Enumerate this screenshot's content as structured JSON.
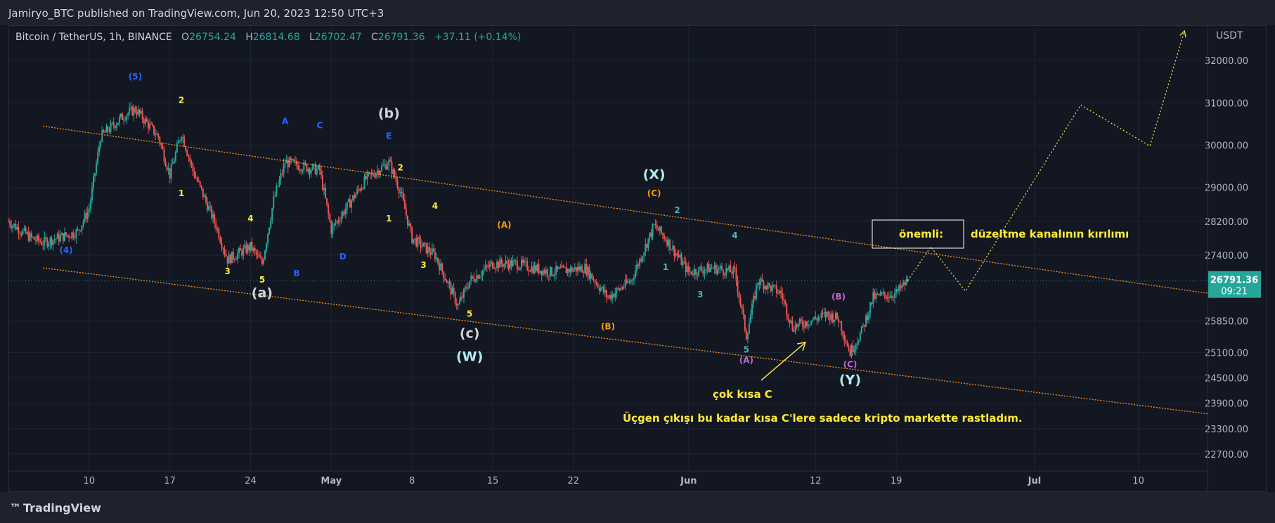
{
  "publisher_line": "Jamiryo_BTC published on TradingView.com, Jun 20, 2023 12:50 UTC+3",
  "legend": {
    "symbol": "Bitcoin / TetherUS, 1h, BINANCE",
    "open_label": "O",
    "open": "26754.24",
    "high_label": "H",
    "high": "26814.68",
    "low_label": "L",
    "low": "26702.47",
    "close_label": "C",
    "close": "26791.36",
    "change": "+37.11 (+0.14%)"
  },
  "currency": "USDT",
  "footer_logo": "TradingView",
  "colors": {
    "background": "#131722",
    "up": "#26a69a",
    "down": "#ef5350",
    "channel": "#f7931a",
    "forecast": "#f5e04a",
    "annotation_text": "#ffeb3b",
    "price_tag": "#26a69a"
  },
  "chart_data": {
    "type": "candlestick",
    "symbol": "Bitcoin / TetherUS",
    "interval": "1h",
    "exchange": "BINANCE",
    "y_axis": {
      "unit": "USDT",
      "ticks": [
        "32000.00",
        "31000.00",
        "30000.00",
        "29000.00",
        "28200.00",
        "27400.00",
        "25850.00",
        "25100.00",
        "24500.00",
        "23900.00",
        "23300.00",
        "22700.00"
      ],
      "range": [
        22300,
        32800
      ]
    },
    "x_axis": {
      "ticks": [
        "10",
        "17",
        "24",
        "May",
        "8",
        "15",
        "22",
        "Jun",
        "12",
        "19",
        "Jul",
        "10"
      ],
      "range": [
        "2023-04-03",
        "2023-07-16"
      ]
    },
    "current_price": {
      "value": 26791.36,
      "label": "26791.36",
      "countdown": "09:21"
    },
    "price_path": [
      {
        "date": "2023-04-03",
        "price": 28200
      },
      {
        "date": "2023-04-05",
        "price": 27800
      },
      {
        "date": "2023-04-06",
        "price": 27700
      },
      {
        "date": "2023-04-09",
        "price": 27950
      },
      {
        "date": "2023-04-10",
        "price": 28500
      },
      {
        "date": "2023-04-11",
        "price": 30200
      },
      {
        "date": "2023-04-13",
        "price": 30700
      },
      {
        "date": "2023-04-14",
        "price": 30850
      },
      {
        "date": "2023-04-16",
        "price": 30200
      },
      {
        "date": "2023-04-17",
        "price": 29300
      },
      {
        "date": "2023-04-18",
        "price": 30300
      },
      {
        "date": "2023-04-19",
        "price": 29400
      },
      {
        "date": "2023-04-21",
        "price": 28100
      },
      {
        "date": "2023-04-22",
        "price": 27300
      },
      {
        "date": "2023-04-24",
        "price": 27600
      },
      {
        "date": "2023-04-25",
        "price": 27200
      },
      {
        "date": "2023-04-26",
        "price": 28700
      },
      {
        "date": "2023-04-27",
        "price": 29600
      },
      {
        "date": "2023-04-30",
        "price": 29400
      },
      {
        "date": "2023-05-01",
        "price": 28000
      },
      {
        "date": "2023-05-02",
        "price": 28400
      },
      {
        "date": "2023-05-04",
        "price": 29200
      },
      {
        "date": "2023-05-06",
        "price": 29600
      },
      {
        "date": "2023-05-07",
        "price": 28900
      },
      {
        "date": "2023-05-08",
        "price": 27800
      },
      {
        "date": "2023-05-10",
        "price": 27400
      },
      {
        "date": "2023-05-12",
        "price": 26200
      },
      {
        "date": "2023-05-13",
        "price": 26800
      },
      {
        "date": "2023-05-15",
        "price": 27200
      },
      {
        "date": "2023-05-17",
        "price": 27200
      },
      {
        "date": "2023-05-20",
        "price": 27000
      },
      {
        "date": "2023-05-23",
        "price": 27100
      },
      {
        "date": "2023-05-25",
        "price": 26400
      },
      {
        "date": "2023-05-27",
        "price": 26800
      },
      {
        "date": "2023-05-29",
        "price": 28100
      },
      {
        "date": "2023-05-30",
        "price": 27800
      },
      {
        "date": "2023-06-01",
        "price": 27000
      },
      {
        "date": "2023-06-03",
        "price": 27100
      },
      {
        "date": "2023-06-05",
        "price": 27000
      },
      {
        "date": "2023-06-06",
        "price": 25500
      },
      {
        "date": "2023-06-07",
        "price": 26800
      },
      {
        "date": "2023-06-09",
        "price": 26500
      },
      {
        "date": "2023-06-10",
        "price": 25700
      },
      {
        "date": "2023-06-12",
        "price": 25900
      },
      {
        "date": "2023-06-13",
        "price": 26000
      },
      {
        "date": "2023-06-14",
        "price": 25900
      },
      {
        "date": "2023-06-15",
        "price": 25100
      },
      {
        "date": "2023-06-16",
        "price": 25600
      },
      {
        "date": "2023-06-17",
        "price": 26400
      },
      {
        "date": "2023-06-19",
        "price": 26500
      },
      {
        "date": "2023-06-20",
        "price": 26790
      }
    ],
    "channel_lines": [
      {
        "name": "upper",
        "from": {
          "date": "2023-04-06",
          "price": 30450
        },
        "to": {
          "date": "2023-07-16",
          "price": 26500
        }
      },
      {
        "name": "lower",
        "from": {
          "date": "2023-04-06",
          "price": 27100
        },
        "to": {
          "date": "2023-07-16",
          "price": 23650
        }
      }
    ],
    "forecast_path": [
      {
        "date": "2023-06-20",
        "price": 26800
      },
      {
        "date": "2023-06-22",
        "price": 27600
      },
      {
        "date": "2023-06-25",
        "price": 26550
      },
      {
        "date": "2023-07-05",
        "price": 30950
      },
      {
        "date": "2023-07-11",
        "price": 29980
      },
      {
        "date": "2023-07-14",
        "price": 32700
      }
    ],
    "wave_labels": [
      {
        "text": "(5)",
        "date": "2023-04-14",
        "price": 31550,
        "color": "#2962ff"
      },
      {
        "text": "2",
        "date": "2023-04-18",
        "price": 31000,
        "color": "#ffeb3b"
      },
      {
        "text": "1",
        "date": "2023-04-18",
        "price": 28800,
        "color": "#ffeb3b"
      },
      {
        "text": "4",
        "date": "2023-04-24",
        "price": 28200,
        "color": "#ffeb3b"
      },
      {
        "text": "3",
        "date": "2023-04-22",
        "price": 26950,
        "color": "#ffeb3b"
      },
      {
        "text": "5",
        "date": "2023-04-25",
        "price": 26750,
        "color": "#ffeb3b"
      },
      {
        "text": "(a)",
        "date": "2023-04-25",
        "price": 26400,
        "color": "#d1d4dc"
      },
      {
        "text": "(4)",
        "date": "2023-04-08",
        "price": 27450,
        "color": "#2962ff"
      },
      {
        "text": "A",
        "date": "2023-04-27",
        "price": 30500,
        "color": "#2962ff"
      },
      {
        "text": "B",
        "date": "2023-04-28",
        "price": 26900,
        "color": "#2962ff"
      },
      {
        "text": "C",
        "date": "2023-04-30",
        "price": 30400,
        "color": "#2962ff"
      },
      {
        "text": "D",
        "date": "2023-05-02",
        "price": 27300,
        "color": "#2962ff"
      },
      {
        "text": "E",
        "date": "2023-05-06",
        "price": 30150,
        "color": "#2962ff"
      },
      {
        "text": "(b)",
        "date": "2023-05-06",
        "price": 30650,
        "color": "#d1d4dc"
      },
      {
        "text": "2",
        "date": "2023-05-07",
        "price": 29400,
        "color": "#ffeb3b"
      },
      {
        "text": "1",
        "date": "2023-05-06",
        "price": 28200,
        "color": "#ffeb3b"
      },
      {
        "text": "4",
        "date": "2023-05-10",
        "price": 28500,
        "color": "#ffeb3b"
      },
      {
        "text": "3",
        "date": "2023-05-09",
        "price": 27100,
        "color": "#ffeb3b"
      },
      {
        "text": "5",
        "date": "2023-05-13",
        "price": 25950,
        "color": "#ffeb3b"
      },
      {
        "text": "(c)",
        "date": "2023-05-13",
        "price": 25450,
        "color": "#d1d4dc"
      },
      {
        "text": "(W)",
        "date": "2023-05-13",
        "price": 24900,
        "color": "#b2ebf2"
      },
      {
        "text": "(A)",
        "date": "2023-05-16",
        "price": 28050,
        "color": "#ff9800"
      },
      {
        "text": "(B)",
        "date": "2023-05-25",
        "price": 25650,
        "color": "#ff9800"
      },
      {
        "text": "(X)",
        "date": "2023-05-29",
        "price": 29200,
        "color": "#b2ebf2"
      },
      {
        "text": "(C)",
        "date": "2023-05-29",
        "price": 28800,
        "color": "#ff9800"
      },
      {
        "text": "2",
        "date": "2023-05-31",
        "price": 28400,
        "color": "#4db6ac"
      },
      {
        "text": "1",
        "date": "2023-05-30",
        "price": 27050,
        "color": "#4db6ac"
      },
      {
        "text": "3",
        "date": "2023-06-02",
        "price": 26400,
        "color": "#4db6ac"
      },
      {
        "text": "4",
        "date": "2023-06-05",
        "price": 27800,
        "color": "#4db6ac"
      },
      {
        "text": "5",
        "date": "2023-06-06",
        "price": 25100,
        "color": "#4db6ac"
      },
      {
        "text": "(A)",
        "date": "2023-06-06",
        "price": 24850,
        "color": "#ba68c8"
      },
      {
        "text": "(B)",
        "date": "2023-06-14",
        "price": 26350,
        "color": "#ba68c8"
      },
      {
        "text": "(C)",
        "date": "2023-06-15",
        "price": 24750,
        "color": "#ba68c8"
      },
      {
        "text": "(Y)",
        "date": "2023-06-15",
        "price": 24350,
        "color": "#b2ebf2"
      }
    ],
    "annotations": [
      {
        "text": "önemli:",
        "color": "#ffeb3b"
      },
      {
        "text": "düzeltme kanalının kırılımı",
        "color": "#ffeb3b"
      },
      {
        "text": "çok kısa C",
        "color": "#ffeb3b"
      },
      {
        "text": "Üçgen çıkışı bu kadar kısa C'lere sadece kripto markette rastladım.",
        "color": "#ffeb3b"
      }
    ]
  }
}
